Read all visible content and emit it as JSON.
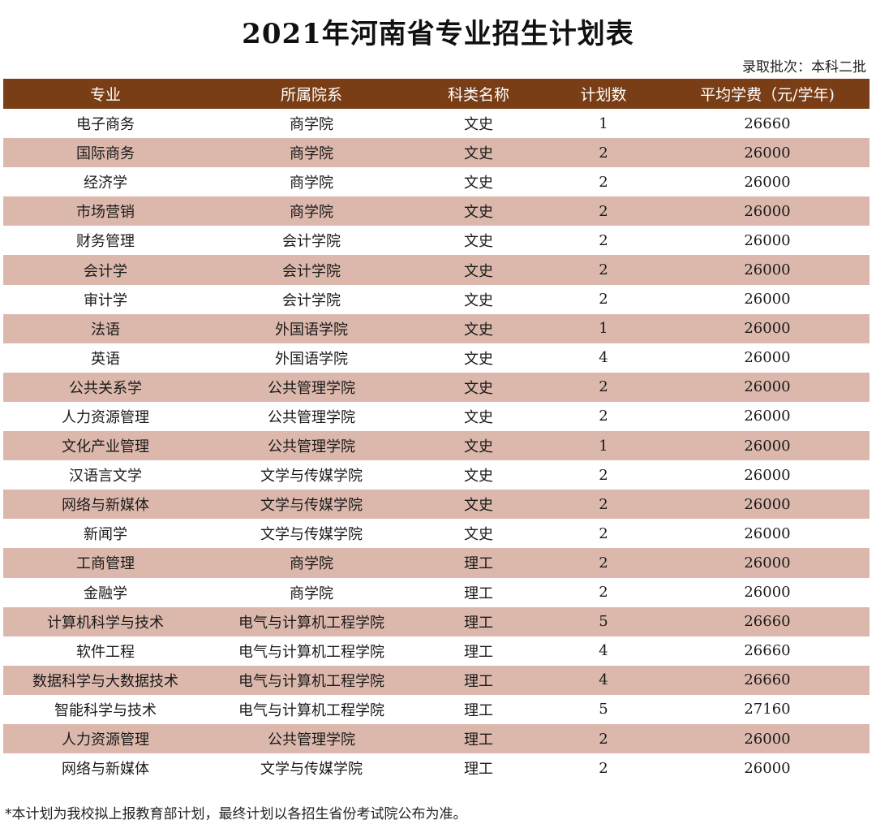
{
  "title": "2021年河南省专业招生计划表",
  "batch": "录取批次：本科二批",
  "headers": [
    "专业",
    "所属院系",
    "科类名称",
    "计划数",
    "平均学费（元/学年)"
  ],
  "rows": [
    [
      "电子商务",
      "商学院",
      "文史",
      "1",
      "26660"
    ],
    [
      "国际商务",
      "商学院",
      "文史",
      "2",
      "26000"
    ],
    [
      "经济学",
      "商学院",
      "文史",
      "2",
      "26000"
    ],
    [
      "市场营销",
      "商学院",
      "文史",
      "2",
      "26000"
    ],
    [
      "财务管理",
      "会计学院",
      "文史",
      "2",
      "26000"
    ],
    [
      "会计学",
      "会计学院",
      "文史",
      "2",
      "26000"
    ],
    [
      "审计学",
      "会计学院",
      "文史",
      "2",
      "26000"
    ],
    [
      "法语",
      "外国语学院",
      "文史",
      "1",
      "26000"
    ],
    [
      "英语",
      "外国语学院",
      "文史",
      "4",
      "26000"
    ],
    [
      "公共关系学",
      "公共管理学院",
      "文史",
      "2",
      "26000"
    ],
    [
      "人力资源管理",
      "公共管理学院",
      "文史",
      "2",
      "26000"
    ],
    [
      "文化产业管理",
      "公共管理学院",
      "文史",
      "1",
      "26000"
    ],
    [
      "汉语言文学",
      "文学与传媒学院",
      "文史",
      "2",
      "26000"
    ],
    [
      "网络与新媒体",
      "文学与传媒学院",
      "文史",
      "2",
      "26000"
    ],
    [
      "新闻学",
      "文学与传媒学院",
      "文史",
      "2",
      "26000"
    ],
    [
      "工商管理",
      "商学院",
      "理工",
      "2",
      "26000"
    ],
    [
      "金融学",
      "商学院",
      "理工",
      "2",
      "26000"
    ],
    [
      "计算机科学与技术",
      "电气与计算机工程学院",
      "理工",
      "5",
      "26660"
    ],
    [
      "软件工程",
      "电气与计算机工程学院",
      "理工",
      "4",
      "26660"
    ],
    [
      "数据科学与大数据技术",
      "电气与计算机工程学院",
      "理工",
      "4",
      "26660"
    ],
    [
      "智能科学与技术",
      "电气与计算机工程学院",
      "理工",
      "5",
      "27160"
    ],
    [
      "人力资源管理",
      "公共管理学院",
      "理工",
      "2",
      "26000"
    ],
    [
      "网络与新媒体",
      "文学与传媒学院",
      "理工",
      "2",
      "26000"
    ]
  ],
  "note": "*本计划为我校拟上报教育部计划，最终计划以各招生省份考试院公布为准。",
  "colors": {
    "header_bg": "#7a3e16",
    "stripe_bg": "#dcb8ac"
  }
}
